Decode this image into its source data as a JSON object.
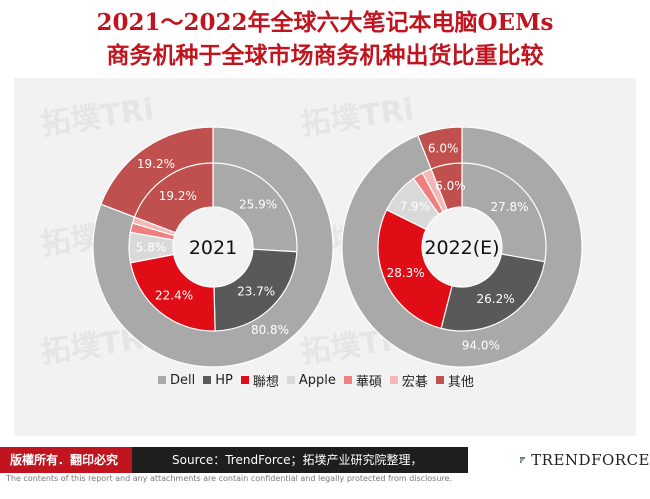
{
  "title_line1": "2021～2022年全球六大笔记本电脑OEMs",
  "title_line2": "商务机种于全球市场商务机种出货比重比较",
  "copyright": "版權所有．翻印必究",
  "source": "Source：TrendForce；拓墣产业研究院整理，2022/09",
  "brand": "TRENDFORCE",
  "disclaimer": "The contents of this report and any attachments are contain confidential and legally protected from disclosure.",
  "watermark_text": "拓墣TRi",
  "colors": {
    "Dell": "#a9a9a9",
    "HP": "#595959",
    "聯想": "#e00c16",
    "Apple": "#d9d9d9",
    "華碩": "#f08080",
    "宏碁": "#f4b6b6",
    "其他": "#c0504d",
    "title": "#c0141e"
  },
  "chart_data": [
    {
      "type": "donut",
      "center_label": "2021",
      "series": [
        {
          "name": "Dell",
          "inner": 25.9,
          "outer": 80.8
        },
        {
          "name": "HP",
          "inner": 23.7,
          "outer": 0
        },
        {
          "name": "聯想",
          "inner": 22.4,
          "outer": 0
        },
        {
          "name": "Apple",
          "inner": 5.8,
          "outer": 0
        },
        {
          "name": "華碩",
          "inner": 1.8,
          "outer": 0
        },
        {
          "name": "宏碁",
          "inner": 1.2,
          "outer": 0
        },
        {
          "name": "其他",
          "inner": 19.2,
          "outer": 19.2
        }
      ],
      "labels": {
        "inner": [
          "25.9%",
          "23.7%",
          "22.4%",
          "5.8%",
          "",
          "",
          "19.2%"
        ],
        "outer": [
          "80.8%",
          "",
          "",
          "",
          "1.8%",
          "1.2%",
          "19.2%"
        ]
      }
    },
    {
      "type": "donut",
      "center_label": "2022(E)",
      "series": [
        {
          "name": "Dell",
          "inner": 27.8,
          "outer": 94.0
        },
        {
          "name": "HP",
          "inner": 26.2,
          "outer": 0
        },
        {
          "name": "聯想",
          "inner": 28.3,
          "outer": 0
        },
        {
          "name": "Apple",
          "inner": 7.9,
          "outer": 0
        },
        {
          "name": "華碩",
          "inner": 2.0,
          "outer": 0
        },
        {
          "name": "宏碁",
          "inner": 1.8,
          "outer": 0
        },
        {
          "name": "其他",
          "inner": 6.0,
          "outer": 6.0
        }
      ],
      "labels": {
        "inner": [
          "27.8%",
          "26.2%",
          "28.3%",
          "7.9%",
          "",
          "",
          "6.0%"
        ],
        "outer": [
          "94.0%",
          "",
          "",
          "",
          "2.0%",
          "1.8%",
          "6.0%"
        ]
      }
    }
  ],
  "legend": [
    "Dell",
    "HP",
    "聯想",
    "Apple",
    "華碩",
    "宏碁",
    "其他"
  ]
}
